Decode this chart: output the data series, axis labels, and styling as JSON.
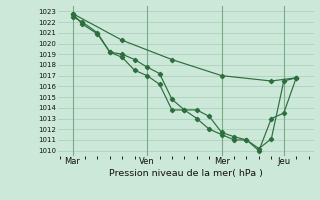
{
  "background_color": "#cce8d8",
  "grid_color": "#aaccb8",
  "line_color": "#2d6e3e",
  "marker_color": "#2d6e3e",
  "xlabel": "Pression niveau de la mer( hPa )",
  "ylim": [
    1009.5,
    1023.5
  ],
  "yticks": [
    1010,
    1011,
    1012,
    1013,
    1014,
    1015,
    1016,
    1017,
    1018,
    1019,
    1020,
    1021,
    1022,
    1023
  ],
  "xtick_labels": [
    "Mar",
    "Ven",
    "Mer",
    "Jeu"
  ],
  "xtick_positions": [
    0.5,
    3.5,
    6.5,
    9.0
  ],
  "vline_positions": [
    0.5,
    3.5,
    6.5,
    9.0
  ],
  "xlim": [
    -0.1,
    10.2
  ],
  "line1_x": [
    0.5,
    0.9,
    1.5,
    2.0,
    2.5,
    3.0,
    3.5,
    4.0,
    4.5,
    5.0,
    5.5,
    6.0,
    6.5,
    7.0,
    7.5,
    8.0,
    8.5,
    9.0,
    9.5
  ],
  "line1_y": [
    1022.5,
    1022.0,
    1021.0,
    1019.2,
    1019.0,
    1018.5,
    1017.8,
    1017.2,
    1014.8,
    1013.8,
    1013.8,
    1013.2,
    1011.7,
    1011.3,
    1011.0,
    1010.2,
    1011.1,
    1016.5,
    1016.8
  ],
  "line2_x": [
    0.5,
    0.9,
    1.5,
    2.0,
    2.5,
    3.0,
    3.5,
    4.0,
    4.5,
    5.0,
    5.5,
    6.0,
    6.5,
    7.0,
    7.5,
    8.0,
    8.5,
    9.0,
    9.5
  ],
  "line2_y": [
    1022.8,
    1021.8,
    1020.9,
    1019.2,
    1018.7,
    1017.5,
    1017.0,
    1016.2,
    1013.8,
    1013.8,
    1013.0,
    1012.0,
    1011.5,
    1011.0,
    1011.0,
    1010.0,
    1013.0,
    1013.5,
    1016.8
  ],
  "line3_x": [
    0.5,
    2.5,
    4.5,
    6.5,
    8.5,
    9.5
  ],
  "line3_y": [
    1022.8,
    1020.3,
    1018.5,
    1017.0,
    1016.5,
    1016.8
  ]
}
